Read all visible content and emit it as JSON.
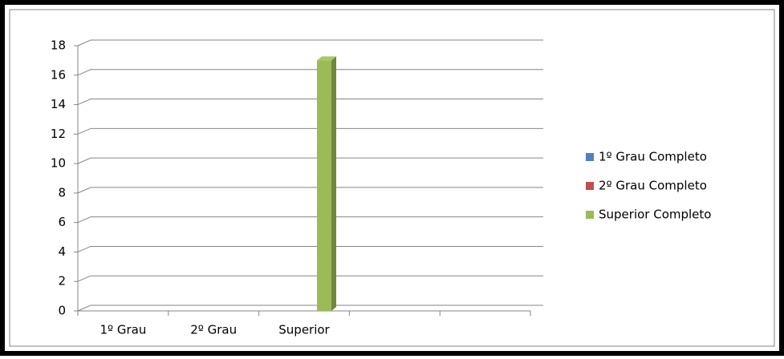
{
  "chart_data": {
    "type": "bar",
    "categories": [
      "1º Grau",
      "2º Grau",
      "Superior",
      null,
      null
    ],
    "series": [
      {
        "name": "1º Grau Completo",
        "color": "#4f81bd",
        "values": [
          0,
          0,
          0,
          null,
          null
        ]
      },
      {
        "name": "2º Grau Completo",
        "color": "#c0504d",
        "values": [
          0,
          0,
          0,
          null,
          null
        ]
      },
      {
        "name": "Superior Completo",
        "color": "#9bbb59",
        "values": [
          0,
          0,
          17,
          null,
          null
        ]
      }
    ],
    "ylim": [
      0,
      18
    ],
    "yticks": [
      0,
      2,
      4,
      6,
      8,
      10,
      12,
      14,
      16,
      18
    ],
    "grid": true,
    "legend": "right"
  }
}
